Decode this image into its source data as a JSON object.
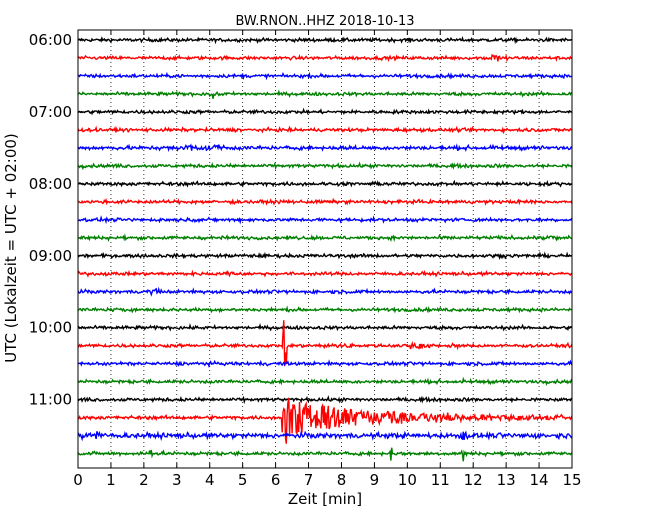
{
  "chart_data": {
    "type": "line",
    "title": "BW.RNON..HHZ 2018-10-13",
    "xlabel": "Zeit  [min]",
    "ylabel": "UTC (Lokalzeit = UTC + 02:00)",
    "xlim": [
      0,
      15
    ],
    "x_ticks": [
      "0",
      "1",
      "2",
      "3",
      "4",
      "5",
      "6",
      "7",
      "8",
      "9",
      "10",
      "11",
      "12",
      "13",
      "14",
      "15"
    ],
    "y_ticks": [
      {
        "label": "06:00",
        "trace": 0
      },
      {
        "label": "07:00",
        "trace": 4
      },
      {
        "label": "08:00",
        "trace": 8
      },
      {
        "label": "09:00",
        "trace": 12
      },
      {
        "label": "10:00",
        "trace": 16
      },
      {
        "label": "11:00",
        "trace": 20
      }
    ],
    "grid": {
      "x": true,
      "style": "dotted"
    },
    "trace_interval_min": 15,
    "series_colors": [
      "#000000",
      "#ff0000",
      "#0000ff",
      "#008000"
    ],
    "traces": [
      {
        "start": "06:00",
        "noise": 0.8,
        "events": []
      },
      {
        "start": "06:15",
        "noise": 0.8,
        "events": [
          {
            "t": 12.7,
            "amp": 3.5,
            "dur": 0.4
          }
        ]
      },
      {
        "start": "06:30",
        "noise": 0.8,
        "events": []
      },
      {
        "start": "06:45",
        "noise": 0.8,
        "events": [
          {
            "t": 4.1,
            "amp": 4,
            "dur": 0.2
          }
        ]
      },
      {
        "start": "07:00",
        "noise": 0.8,
        "events": []
      },
      {
        "start": "07:15",
        "noise": 0.8,
        "events": []
      },
      {
        "start": "07:30",
        "noise": 0.9,
        "events": [
          {
            "t": 3.5,
            "amp": 2.5,
            "dur": 1.2
          },
          {
            "t": 4.2,
            "amp": 3,
            "dur": 0.3
          }
        ]
      },
      {
        "start": "07:45",
        "noise": 0.8,
        "events": []
      },
      {
        "start": "08:00",
        "noise": 0.8,
        "events": []
      },
      {
        "start": "08:15",
        "noise": 0.8,
        "events": []
      },
      {
        "start": "08:30",
        "noise": 0.8,
        "events": []
      },
      {
        "start": "08:45",
        "noise": 0.8,
        "events": [
          {
            "t": 14.4,
            "amp": 1.5,
            "dur": 0.5
          }
        ]
      },
      {
        "start": "09:00",
        "noise": 0.8,
        "events": []
      },
      {
        "start": "09:15",
        "noise": 0.8,
        "events": [
          {
            "t": 4.6,
            "amp": 2,
            "dur": 0.3
          }
        ]
      },
      {
        "start": "09:30",
        "noise": 0.8,
        "events": [
          {
            "t": 2.4,
            "amp": 2.5,
            "dur": 0.4
          }
        ]
      },
      {
        "start": "09:45",
        "noise": 0.8,
        "events": [
          {
            "t": 1.3,
            "amp": 2,
            "dur": 0.3
          }
        ]
      },
      {
        "start": "10:00",
        "noise": 0.8,
        "events": []
      },
      {
        "start": "10:15",
        "noise": 0.8,
        "events": [
          {
            "t": 6.28,
            "amp": 42,
            "dur": 0.08
          },
          {
            "t": 8.0,
            "amp": 1.5,
            "dur": 0.8
          },
          {
            "t": 10.3,
            "amp": 3,
            "dur": 0.6
          },
          {
            "t": 11.5,
            "amp": 1.5,
            "dur": 0.6
          }
        ]
      },
      {
        "start": "10:30",
        "noise": 0.8,
        "events": []
      },
      {
        "start": "10:45",
        "noise": 0.8,
        "events": [
          {
            "t": 11.7,
            "amp": 3,
            "dur": 0.15
          }
        ]
      },
      {
        "start": "11:00",
        "noise": 0.8,
        "events": []
      },
      {
        "start": "11:15",
        "noise": 0.8,
        "quake": {
          "t": 6.18,
          "amp": 18,
          "decay": 2.5,
          "post_amp": 28
        },
        "events": []
      },
      {
        "start": "11:30",
        "noise": 1.2,
        "events": [
          {
            "t": 0.5,
            "amp": 4,
            "dur": 0.6
          },
          {
            "t": 11.7,
            "amp": 6,
            "dur": 0.1
          }
        ]
      },
      {
        "start": "11:45",
        "noise": 0.8,
        "events": [
          {
            "t": 2.2,
            "amp": 8,
            "dur": 0.06
          },
          {
            "t": 9.5,
            "amp": 8,
            "dur": 0.06
          },
          {
            "t": 11.7,
            "amp": 10,
            "dur": 0.06
          }
        ]
      }
    ]
  }
}
